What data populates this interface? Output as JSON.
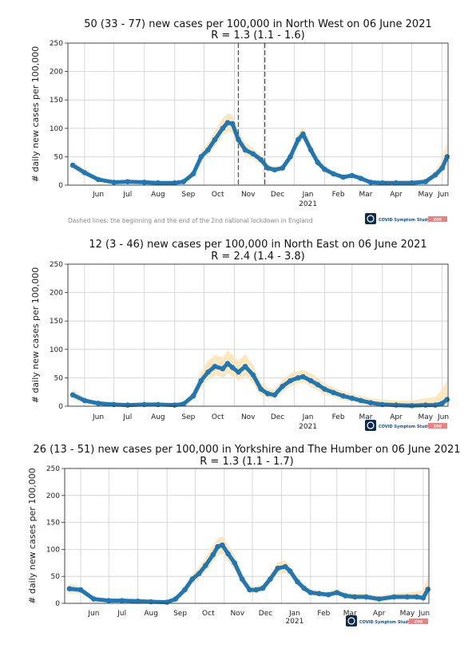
{
  "colors": {
    "line": "#1f77b4",
    "band": "#fde4b8",
    "grid": "#cfcfcf",
    "lockdown": "#555555",
    "zoe": "#f08080",
    "logo_bg": "#0d2b4e"
  },
  "footnote": "Dashed lines: the beginning and the end of the 2nd national lockdown in England",
  "logo": {
    "text": "COVID Symptom Study",
    "badge": "ZOE"
  },
  "chart_data": [
    {
      "type": "line",
      "title": "50 (33 - 77) new cases per 100,000 in North West on 06 June 2021",
      "subtitle": "R = 1.3 (1.1 - 1.6)",
      "ylabel": "# daily new cases per 100,000",
      "ylim": [
        0,
        250
      ],
      "yticks": [
        0,
        50,
        100,
        150,
        200,
        250
      ],
      "xticks": [
        "Jun",
        "Jul",
        "Aug",
        "Sep",
        "Oct",
        "Nov",
        "Dec",
        "Jan",
        "Feb",
        "Mar",
        "Apr",
        "May",
        "Jun"
      ],
      "year_label": "2021",
      "grid": true,
      "lockdown_lines": [
        "2020-11-05",
        "2020-12-02"
      ],
      "series": [
        {
          "x": [
            "2020-05-20",
            "2020-06-01",
            "2020-06-15",
            "2020-07-01",
            "2020-07-15",
            "2020-08-01",
            "2020-08-15",
            "2020-09-01",
            "2020-09-10",
            "2020-09-20",
            "2020-09-28",
            "2020-10-05",
            "2020-10-12",
            "2020-10-20",
            "2020-10-25",
            "2020-10-30",
            "2020-11-05",
            "2020-11-12",
            "2020-11-20",
            "2020-11-28",
            "2020-12-05",
            "2020-12-12",
            "2020-12-20",
            "2020-12-28",
            "2021-01-05",
            "2021-01-10",
            "2021-01-18",
            "2021-01-25",
            "2021-02-01",
            "2021-02-10",
            "2021-02-20",
            "2021-03-01",
            "2021-03-10",
            "2021-03-20",
            "2021-04-01",
            "2021-04-15",
            "2021-05-01",
            "2021-05-15",
            "2021-05-25",
            "2021-06-01",
            "2021-06-06"
          ],
          "y": [
            35,
            22,
            10,
            5,
            6,
            5,
            4,
            4,
            6,
            20,
            50,
            62,
            80,
            100,
            110,
            108,
            80,
            62,
            55,
            45,
            30,
            27,
            30,
            50,
            80,
            90,
            62,
            40,
            28,
            20,
            14,
            17,
            12,
            5,
            4,
            4,
            4,
            6,
            18,
            30,
            50
          ],
          "lower": [
            28,
            17,
            7,
            3,
            4,
            3,
            2,
            2,
            4,
            15,
            40,
            52,
            68,
            86,
            95,
            92,
            68,
            52,
            46,
            38,
            25,
            22,
            25,
            43,
            70,
            80,
            54,
            34,
            23,
            16,
            11,
            13,
            9,
            3,
            2,
            2,
            2,
            4,
            13,
            21,
            33
          ],
          "upper": [
            42,
            28,
            13,
            7,
            8,
            7,
            6,
            6,
            8,
            26,
            60,
            74,
            95,
            118,
            126,
            124,
            96,
            74,
            65,
            53,
            36,
            33,
            36,
            58,
            92,
            102,
            72,
            47,
            34,
            25,
            18,
            21,
            16,
            8,
            8,
            8,
            9,
            12,
            26,
            45,
            77
          ]
        }
      ]
    },
    {
      "type": "line",
      "title": "12 (3 - 46) new cases per 100,000 in North East on 06 June 2021",
      "subtitle": "R = 2.4 (1.4 - 3.8)",
      "ylabel": "# daily new cases per 100,000",
      "ylim": [
        0,
        250
      ],
      "yticks": [
        0,
        50,
        100,
        150,
        200,
        250
      ],
      "xticks": [
        "Jun",
        "Jul",
        "Aug",
        "Sep",
        "Oct",
        "Nov",
        "Dec",
        "Jan",
        "Feb",
        "Mar",
        "Apr",
        "May",
        "Jun"
      ],
      "year_label": "2021",
      "grid": true,
      "series": [
        {
          "x": [
            "2020-05-20",
            "2020-06-01",
            "2020-06-15",
            "2020-07-01",
            "2020-07-15",
            "2020-08-01",
            "2020-08-15",
            "2020-09-01",
            "2020-09-10",
            "2020-09-20",
            "2020-09-28",
            "2020-10-05",
            "2020-10-12",
            "2020-10-20",
            "2020-10-25",
            "2020-10-30",
            "2020-11-05",
            "2020-11-12",
            "2020-11-20",
            "2020-11-28",
            "2020-12-05",
            "2020-12-12",
            "2020-12-20",
            "2020-12-28",
            "2021-01-05",
            "2021-01-10",
            "2021-01-18",
            "2021-01-25",
            "2021-02-01",
            "2021-02-10",
            "2021-02-20",
            "2021-03-01",
            "2021-03-10",
            "2021-03-20",
            "2021-04-01",
            "2021-04-15",
            "2021-05-01",
            "2021-05-15",
            "2021-05-25",
            "2021-06-01",
            "2021-06-06"
          ],
          "y": [
            20,
            10,
            5,
            3,
            2,
            3,
            3,
            2,
            4,
            18,
            45,
            60,
            70,
            66,
            75,
            68,
            60,
            70,
            55,
            30,
            22,
            20,
            35,
            45,
            50,
            52,
            45,
            38,
            30,
            24,
            18,
            14,
            10,
            6,
            3,
            2,
            1,
            2,
            2,
            5,
            12
          ],
          "lower": [
            12,
            6,
            3,
            1,
            1,
            1,
            1,
            1,
            2,
            10,
            32,
            46,
            55,
            50,
            58,
            52,
            45,
            54,
            40,
            20,
            14,
            13,
            25,
            35,
            40,
            42,
            35,
            28,
            21,
            16,
            11,
            8,
            5,
            2,
            1,
            0,
            0,
            0,
            0,
            1,
            3
          ],
          "upper": [
            30,
            15,
            9,
            6,
            5,
            6,
            6,
            4,
            8,
            26,
            60,
            80,
            90,
            86,
            98,
            90,
            80,
            92,
            72,
            42,
            32,
            30,
            46,
            58,
            62,
            64,
            58,
            50,
            40,
            33,
            26,
            22,
            18,
            14,
            12,
            10,
            10,
            14,
            16,
            30,
            46
          ]
        }
      ]
    },
    {
      "type": "line",
      "title": "26 (13 - 51) new cases per 100,000 in Yorkshire and The Humber on 06 June 2021",
      "subtitle": "R = 1.3 (1.1 - 1.7)",
      "ylabel": "# daily new cases per 100,000",
      "ylim": [
        0,
        250
      ],
      "yticks": [
        0,
        50,
        100,
        150,
        200,
        250
      ],
      "xticks": [
        "Jun",
        "Jul",
        "Aug",
        "Sep",
        "Oct",
        "Nov",
        "Dec",
        "Jan",
        "Feb",
        "Mar",
        "Apr",
        "May",
        "Jun"
      ],
      "year_label": "2021",
      "grid": true,
      "series": [
        {
          "x": [
            "2020-05-20",
            "2020-06-01",
            "2020-06-15",
            "2020-07-01",
            "2020-07-15",
            "2020-08-01",
            "2020-08-15",
            "2020-09-01",
            "2020-09-10",
            "2020-09-20",
            "2020-09-28",
            "2020-10-05",
            "2020-10-12",
            "2020-10-20",
            "2020-10-25",
            "2020-10-30",
            "2020-11-05",
            "2020-11-12",
            "2020-11-20",
            "2020-11-28",
            "2020-12-05",
            "2020-12-12",
            "2020-12-20",
            "2020-12-28",
            "2021-01-05",
            "2021-01-10",
            "2021-01-18",
            "2021-01-25",
            "2021-02-01",
            "2021-02-10",
            "2021-02-20",
            "2021-03-01",
            "2021-03-10",
            "2021-03-20",
            "2021-04-01",
            "2021-04-15",
            "2021-05-01",
            "2021-05-15",
            "2021-05-25",
            "2021-06-01",
            "2021-06-06"
          ],
          "y": [
            27,
            25,
            8,
            5,
            5,
            4,
            3,
            2,
            8,
            25,
            45,
            55,
            70,
            90,
            105,
            108,
            92,
            75,
            45,
            25,
            25,
            28,
            45,
            65,
            68,
            60,
            40,
            28,
            20,
            18,
            16,
            20,
            14,
            12,
            12,
            8,
            12,
            12,
            12,
            10,
            26
          ],
          "lower": [
            18,
            18,
            5,
            3,
            3,
            2,
            2,
            1,
            5,
            18,
            36,
            45,
            58,
            76,
            90,
            92,
            78,
            62,
            36,
            18,
            18,
            21,
            36,
            55,
            57,
            50,
            32,
            21,
            14,
            12,
            11,
            14,
            9,
            7,
            6,
            4,
            6,
            6,
            6,
            5,
            13
          ],
          "upper": [
            36,
            32,
            12,
            8,
            8,
            6,
            5,
            4,
            12,
            32,
            54,
            66,
            84,
            106,
            120,
            124,
            108,
            88,
            55,
            33,
            32,
            36,
            54,
            76,
            80,
            70,
            48,
            35,
            26,
            24,
            22,
            27,
            20,
            18,
            18,
            14,
            19,
            20,
            22,
            24,
            51
          ]
        }
      ]
    }
  ]
}
